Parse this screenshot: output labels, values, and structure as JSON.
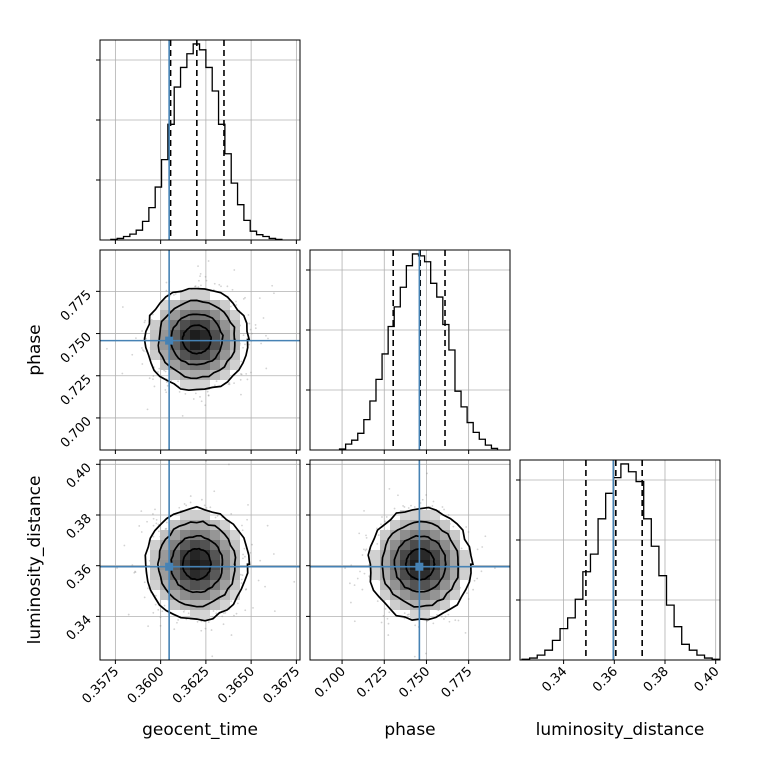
{
  "colors": {
    "truth": "#4682b4",
    "hist": "#000000",
    "grid": "#b0b0b0",
    "scatter": "#808080"
  },
  "chart_data": {
    "type": "corner",
    "parameters": [
      "geocent_time",
      "phase",
      "luminosity_distance"
    ],
    "axis_labels": {
      "x": [
        "geocent_time",
        "phase",
        "luminosity_distance"
      ],
      "y": [
        "phase",
        "luminosity_distance"
      ]
    },
    "ranges": {
      "geocent_time": [
        0.35665,
        0.3677
      ],
      "phase": [
        0.681,
        0.7995
      ],
      "luminosity_distance": [
        0.3228,
        0.4017
      ]
    },
    "ticks": {
      "geocent_time": [
        "0.3575",
        "0.3600",
        "0.3625",
        "0.3650",
        "0.3675"
      ],
      "phase": [
        "0.700",
        "0.725",
        "0.750",
        "0.775"
      ],
      "luminosity_distance": [
        "0.34",
        "0.36",
        "0.38",
        "0.40"
      ]
    },
    "truths": {
      "geocent_time": 0.36047,
      "phase": 0.7458,
      "luminosity_distance": 0.3596
    },
    "quantiles": {
      "geocent_time": [
        0.36055,
        0.362,
        0.3635
      ],
      "phase": [
        0.7303,
        0.7463,
        0.761
      ],
      "luminosity_distance": [
        0.3488,
        0.3606,
        0.371
      ]
    },
    "histograms": {
      "geocent_time": {
        "edges": [
          0.35725,
          0.3576,
          0.35795,
          0.3583,
          0.35865,
          0.359,
          0.35935,
          0.3597,
          0.36005,
          0.3604,
          0.36075,
          0.3611,
          0.36145,
          0.3618,
          0.36215,
          0.3625,
          0.36285,
          0.3632,
          0.36355,
          0.3639,
          0.36425,
          0.3646,
          0.36495,
          0.3653,
          0.36565,
          0.366,
          0.36635,
          0.3667
        ],
        "counts": [
          0.3,
          0.8,
          1.8,
          3,
          5,
          9.5,
          16.5,
          27,
          41,
          59,
          78,
          88,
          95,
          100,
          97,
          88,
          76,
          59,
          44,
          29,
          18,
          10,
          4.5,
          2.7,
          1.8,
          0.8,
          0.3
        ]
      },
      "phase": {
        "edges": [
          0.6985,
          0.7021,
          0.7057,
          0.7093,
          0.7129,
          0.7165,
          0.7201,
          0.7237,
          0.7273,
          0.7309,
          0.7345,
          0.7381,
          0.7417,
          0.7453,
          0.7489,
          0.7525,
          0.7561,
          0.7597,
          0.7633,
          0.7669,
          0.7705,
          0.7741,
          0.7777,
          0.7813,
          0.7849,
          0.7885,
          0.7921
        ],
        "counts": [
          0.5,
          3,
          5,
          8.5,
          15.5,
          25,
          36,
          49,
          63,
          73,
          83,
          94,
          100,
          99,
          96,
          85,
          78,
          64,
          51,
          30,
          22,
          14,
          9,
          5.5,
          2.5,
          0.8
        ]
      },
      "luminosity_distance": {
        "edges": [
          0.3236,
          0.3266,
          0.3296,
          0.3326,
          0.3356,
          0.3386,
          0.3416,
          0.3446,
          0.3476,
          0.3506,
          0.3536,
          0.3566,
          0.3596,
          0.3626,
          0.3656,
          0.3686,
          0.3716,
          0.3746,
          0.3776,
          0.3806,
          0.3836,
          0.3866,
          0.3896,
          0.3926,
          0.3956,
          0.3986,
          0.4016
        ],
        "counts": [
          0.4,
          1,
          2.5,
          5,
          10,
          16,
          21.5,
          31,
          45,
          54,
          72,
          85,
          93,
          100,
          96,
          91,
          72,
          58,
          43,
          28,
          17,
          8,
          5,
          2.5,
          1,
          0.4
        ]
      }
    },
    "joint": [
      {
        "x": "geocent_time",
        "y": "phase",
        "center": [
          0.362,
          0.7465
        ],
        "sigma": [
          0.00142,
          0.0152
        ],
        "contour_levels": 4,
        "scatter_points": 600
      },
      {
        "x": "geocent_time",
        "y": "luminosity_distance",
        "center": [
          0.362,
          0.3606
        ],
        "sigma": [
          0.00142,
          0.0111
        ],
        "contour_levels": 4,
        "scatter_points": 600
      },
      {
        "x": "phase",
        "y": "luminosity_distance",
        "center": [
          0.7463,
          0.3606
        ],
        "sigma": [
          0.0152,
          0.0111
        ],
        "contour_levels": 4,
        "scatter_points": 600
      }
    ],
    "grid": true
  }
}
